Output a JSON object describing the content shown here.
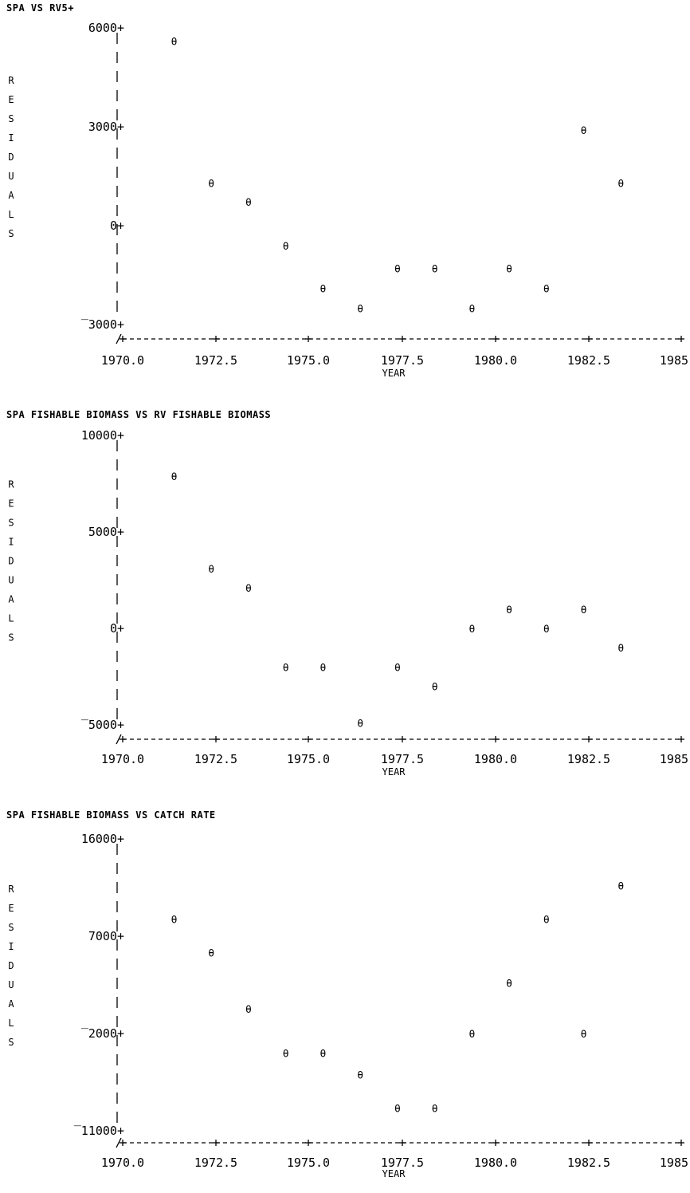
{
  "plot_marker": "θ",
  "ylabel_letters": [
    "R",
    "E",
    "S",
    "I",
    "D",
    "U",
    "A",
    "L",
    "S"
  ],
  "chart_data": [
    {
      "type": "scatter",
      "title": "SPA VS RV5+",
      "xlabel": "YEAR",
      "ylabel": "RESIDUALS",
      "xlim": [
        1970.0,
        1985.0
      ],
      "ylim": [
        -3000,
        6000
      ],
      "x_ticks": [
        "1970.0",
        "1972.5",
        "1975.0",
        "1977.5",
        "1980.0",
        "1982.5",
        "1985.0"
      ],
      "y_ticks": [
        {
          "value": 6000,
          "label": "6000+"
        },
        {
          "value": 3000,
          "label": "3000+"
        },
        {
          "value": 0,
          "label": "0+"
        },
        {
          "value": -3000,
          "label": "‾3000+"
        }
      ],
      "x": [
        1971,
        1972,
        1973,
        1974,
        1975,
        1976,
        1977,
        1978,
        1979,
        1980,
        1981,
        1982,
        1983
      ],
      "y": [
        5600,
        1300,
        720,
        -600,
        -1900,
        -2500,
        -1300,
        -1300,
        -2500,
        -1300,
        -1900,
        2900,
        1300
      ],
      "grid": false,
      "legend": "none"
    },
    {
      "type": "scatter",
      "title": "SPA FISHABLE BIOMASS VS RV FISHABLE BIOMASS",
      "xlabel": "YEAR",
      "ylabel": "RESIDUALS",
      "xlim": [
        1970.0,
        1985.0
      ],
      "ylim": [
        -5000,
        10000
      ],
      "x_ticks": [
        "1970.0",
        "1972.5",
        "1975.0",
        "1977.5",
        "1980.0",
        "1982.5",
        "1985.0"
      ],
      "y_ticks": [
        {
          "value": 10000,
          "label": "10000+"
        },
        {
          "value": 5000,
          "label": "5000+"
        },
        {
          "value": 0,
          "label": "0+"
        },
        {
          "value": -5000,
          "label": "‾5000+"
        }
      ],
      "x": [
        1971,
        1972,
        1973,
        1974,
        1975,
        1976,
        1977,
        1978,
        1979,
        1980,
        1981,
        1982,
        1983
      ],
      "y": [
        7900,
        3100,
        2100,
        -2000,
        -2000,
        -4900,
        -2000,
        -3000,
        0,
        1000,
        0,
        1000,
        -1000
      ],
      "grid": false,
      "legend": "none"
    },
    {
      "type": "scatter",
      "title": "SPA FISHABLE BIOMASS VS CATCH RATE",
      "xlabel": "YEAR",
      "ylabel": "RESIDUALS",
      "xlim": [
        1970.0,
        1985.0
      ],
      "ylim": [
        -11000,
        16000
      ],
      "x_ticks": [
        "1970.0",
        "1972.5",
        "1975.0",
        "1977.5",
        "1980.0",
        "1982.5",
        "1985.0"
      ],
      "y_ticks": [
        {
          "value": 16000,
          "label": "16000+"
        },
        {
          "value": 7000,
          "label": "7000+"
        },
        {
          "value": -2000,
          "label": "‾2000+"
        },
        {
          "value": -11000,
          "label": "‾11000+"
        }
      ],
      "x": [
        1971,
        1972,
        1973,
        1974,
        1975,
        1976,
        1977,
        1978,
        1979,
        1980,
        1981,
        1982,
        1983
      ],
      "y": [
        8600,
        5500,
        300,
        -3800,
        -3800,
        -5800,
        -8900,
        -8900,
        -2000,
        2700,
        8600,
        -2000,
        11700
      ],
      "grid": false,
      "legend": "none"
    }
  ]
}
